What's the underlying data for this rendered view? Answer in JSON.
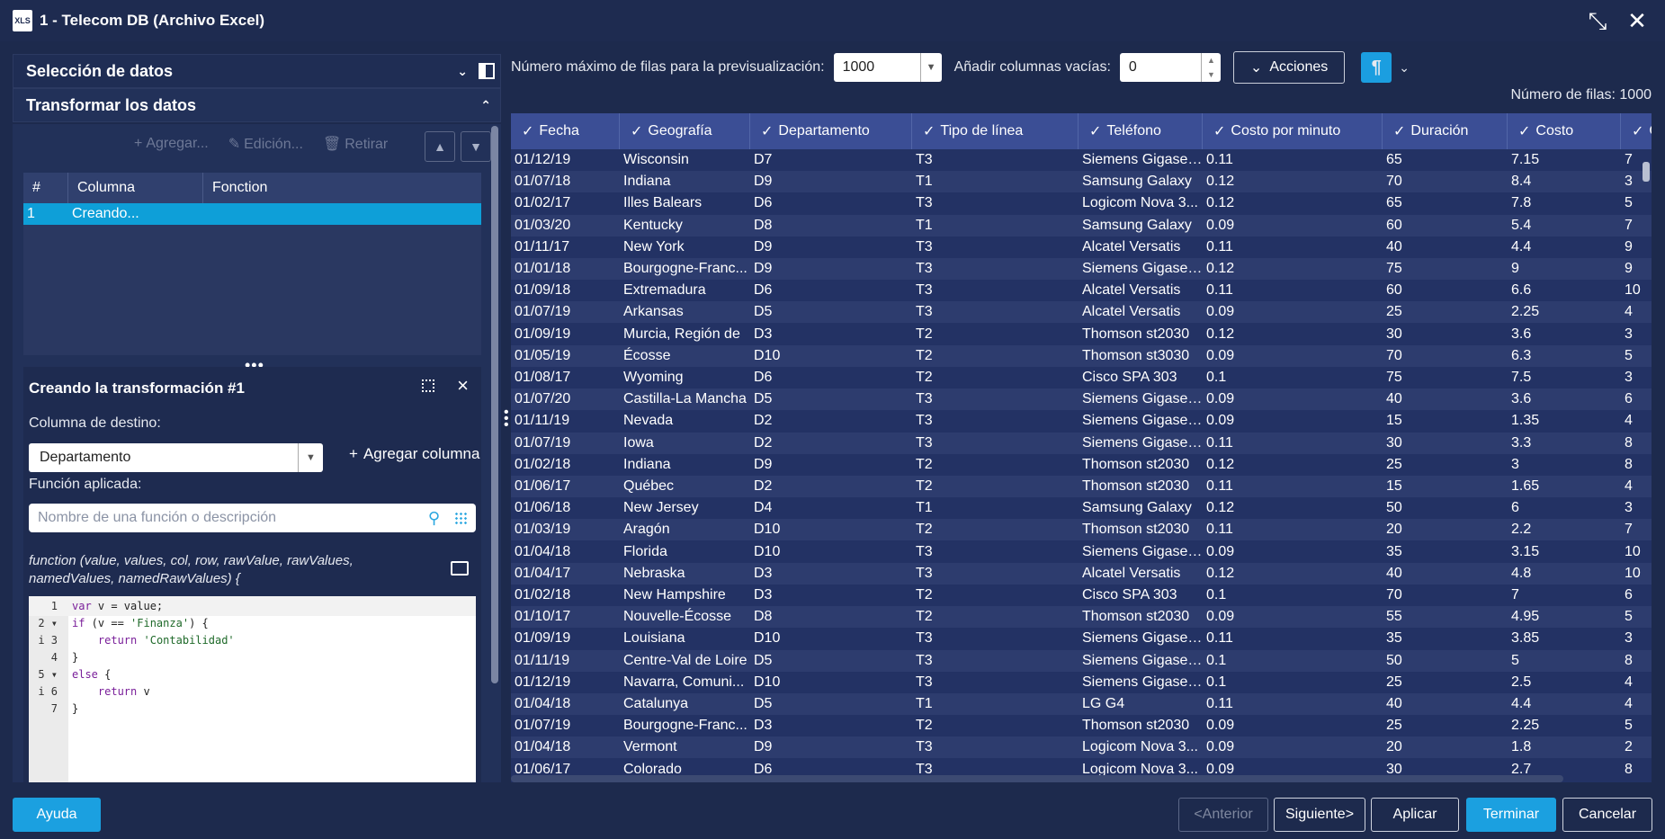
{
  "window": {
    "icon_text": "XLS",
    "title": "1 - Telecom DB (Archivo Excel)"
  },
  "left": {
    "section1": "Selección de datos",
    "section2": "Transformar los datos",
    "toolbar": {
      "add": "Agregar...",
      "edit": "Edición...",
      "remove": "Retirar"
    },
    "table": {
      "headers": [
        "#",
        "Columna",
        "Fonction"
      ],
      "rows": [
        {
          "num": "1",
          "column": "Creando...",
          "function": ""
        }
      ]
    },
    "editor": {
      "title": "Creando la transformación #1",
      "dest_label": "Columna de destino:",
      "dest_value": "Departamento",
      "add_column": "Agregar columna",
      "func_label": "Función aplicada:",
      "func_placeholder": "Nombre de una función o descripción",
      "signature": "function (value, values, col, row, rawValue, rawValues, namedValues, namedRawValues) {",
      "code_lines": [
        "var v = value;",
        "if (v == 'Finanza') {",
        "    return 'Contabilidad'",
        "}",
        "else {",
        "    return v",
        "}"
      ]
    }
  },
  "right": {
    "max_rows_label": "Número máximo de filas para la previsualización:",
    "max_rows_value": "1000",
    "add_cols_label": "Añadir columnas vacías:",
    "add_cols_value": "0",
    "actions": "Acciones",
    "para_symbol": "¶",
    "row_count": "Número de filas: 1000",
    "columns": [
      "Fecha",
      "Geografía",
      "Departamento",
      "Tipo de línea",
      "Teléfono",
      "Costo por minuto",
      "Duración",
      "Costo",
      "C"
    ],
    "rows": [
      [
        "01/12/19",
        "Wisconsin",
        "D7",
        "T3",
        "Siemens Gigaset...",
        "0.11",
        "65",
        "7.15",
        "7"
      ],
      [
        "01/07/18",
        "Indiana",
        "D9",
        "T1",
        "Samsung Galaxy",
        "0.12",
        "70",
        "8.4",
        "3"
      ],
      [
        "01/02/17",
        "Illes Balears",
        "D6",
        "T3",
        "Logicom Nova 3...",
        "0.12",
        "65",
        "7.8",
        "5"
      ],
      [
        "01/03/20",
        "Kentucky",
        "D8",
        "T1",
        "Samsung Galaxy",
        "0.09",
        "60",
        "5.4",
        "7"
      ],
      [
        "01/11/17",
        "New York",
        "D9",
        "T3",
        "Alcatel Versatis",
        "0.11",
        "40",
        "4.4",
        "9"
      ],
      [
        "01/01/18",
        "Bourgogne-Franc...",
        "D9",
        "T3",
        "Siemens Gigaset...",
        "0.12",
        "75",
        "9",
        "9"
      ],
      [
        "01/09/18",
        "Extremadura",
        "D6",
        "T3",
        "Alcatel Versatis",
        "0.11",
        "60",
        "6.6",
        "10"
      ],
      [
        "01/07/19",
        "Arkansas",
        "D5",
        "T3",
        "Alcatel Versatis",
        "0.09",
        "25",
        "2.25",
        "4"
      ],
      [
        "01/09/19",
        "Murcia, Región de",
        "D3",
        "T2",
        "Thomson st2030",
        "0.12",
        "30",
        "3.6",
        "3"
      ],
      [
        "01/05/19",
        "Écosse",
        "D10",
        "T2",
        "Thomson st3030",
        "0.09",
        "70",
        "6.3",
        "5"
      ],
      [
        "01/08/17",
        "Wyoming",
        "D6",
        "T2",
        "Cisco SPA 303",
        "0.1",
        "75",
        "7.5",
        "3"
      ],
      [
        "01/07/20",
        "Castilla-La Mancha",
        "D5",
        "T3",
        "Siemens Gigaset...",
        "0.09",
        "40",
        "3.6",
        "6"
      ],
      [
        "01/11/19",
        "Nevada",
        "D2",
        "T3",
        "Siemens Gigaset...",
        "0.09",
        "15",
        "1.35",
        "4"
      ],
      [
        "01/07/19",
        "Iowa",
        "D2",
        "T3",
        "Siemens Gigaset...",
        "0.11",
        "30",
        "3.3",
        "8"
      ],
      [
        "01/02/18",
        "Indiana",
        "D9",
        "T2",
        "Thomson st2030",
        "0.12",
        "25",
        "3",
        "8"
      ],
      [
        "01/06/17",
        "Québec",
        "D2",
        "T2",
        "Thomson st2030",
        "0.11",
        "15",
        "1.65",
        "4"
      ],
      [
        "01/06/18",
        "New Jersey",
        "D4",
        "T1",
        "Samsung Galaxy",
        "0.12",
        "50",
        "6",
        "3"
      ],
      [
        "01/03/19",
        "Aragón",
        "D10",
        "T2",
        "Thomson st2030",
        "0.11",
        "20",
        "2.2",
        "7"
      ],
      [
        "01/04/18",
        "Florida",
        "D10",
        "T3",
        "Siemens Gigaset...",
        "0.09",
        "35",
        "3.15",
        "10"
      ],
      [
        "01/04/17",
        "Nebraska",
        "D3",
        "T3",
        "Alcatel Versatis",
        "0.12",
        "40",
        "4.8",
        "10"
      ],
      [
        "01/02/18",
        "New Hampshire",
        "D3",
        "T2",
        "Cisco SPA 303",
        "0.1",
        "70",
        "7",
        "6"
      ],
      [
        "01/10/17",
        "Nouvelle-Écosse",
        "D8",
        "T2",
        "Thomson st2030",
        "0.09",
        "55",
        "4.95",
        "5"
      ],
      [
        "01/09/19",
        "Louisiana",
        "D10",
        "T3",
        "Siemens Gigaset...",
        "0.11",
        "35",
        "3.85",
        "3"
      ],
      [
        "01/11/19",
        "Centre-Val de Loire",
        "D5",
        "T3",
        "Siemens Gigaset...",
        "0.1",
        "50",
        "5",
        "8"
      ],
      [
        "01/12/19",
        "Navarra, Comuni...",
        "D10",
        "T3",
        "Siemens Gigaset...",
        "0.1",
        "25",
        "2.5",
        "4"
      ],
      [
        "01/04/18",
        "Catalunya",
        "D5",
        "T1",
        "LG G4",
        "0.11",
        "40",
        "4.4",
        "4"
      ],
      [
        "01/07/19",
        "Bourgogne-Franc...",
        "D3",
        "T2",
        "Thomson st2030",
        "0.09",
        "25",
        "2.25",
        "5"
      ],
      [
        "01/04/18",
        "Vermont",
        "D9",
        "T3",
        "Logicom Nova 3...",
        "0.09",
        "20",
        "1.8",
        "2"
      ],
      [
        "01/06/17",
        "Colorado",
        "D6",
        "T3",
        "Logicom Nova 3...",
        "0.09",
        "30",
        "2.7",
        "8"
      ]
    ]
  },
  "footer": {
    "help": "Ayuda",
    "prev": "<Anterior",
    "next": "Siguiente>",
    "apply": "Aplicar",
    "finish": "Terminar",
    "cancel": "Cancelar"
  }
}
